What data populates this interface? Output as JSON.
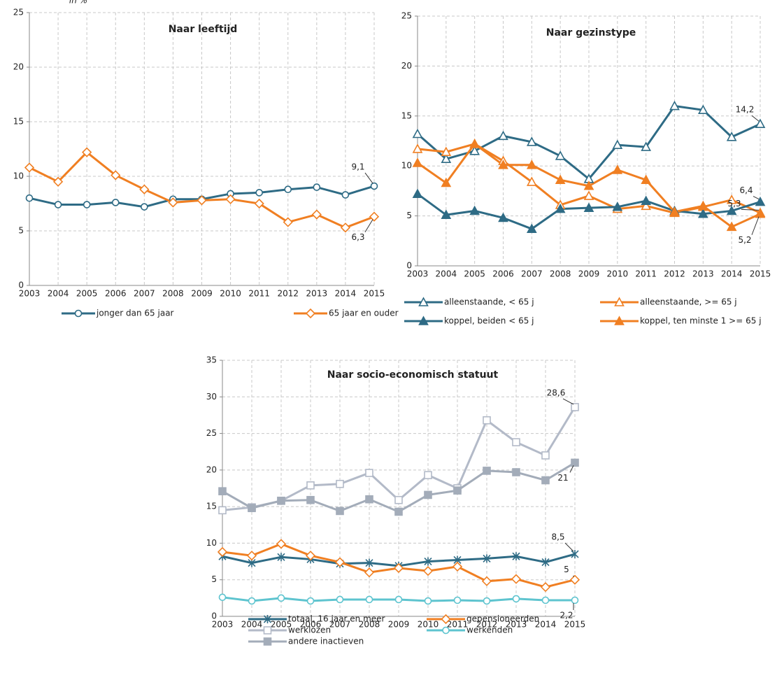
{
  "chart_data": [
    {
      "type": "line",
      "title": "Naar leeftijd",
      "y_label": "in %",
      "categories": [
        "2003",
        "2004",
        "2005",
        "2006",
        "2007",
        "2008",
        "2009",
        "2010",
        "2011",
        "2012",
        "2013",
        "2014",
        "2015"
      ],
      "ylim": [
        0,
        25
      ],
      "yticks": [
        0,
        5,
        10,
        15,
        20,
        25
      ],
      "grid": true,
      "series": [
        {
          "name": "jonger dan 65 jaar",
          "color": "#2e6b85",
          "marker": "circle-open",
          "values": [
            8.0,
            7.4,
            7.4,
            7.6,
            7.2,
            7.9,
            7.9,
            8.4,
            8.5,
            8.8,
            9.0,
            8.3,
            9.1
          ],
          "value_labels": [
            null,
            null,
            null,
            null,
            null,
            null,
            null,
            null,
            null,
            null,
            null,
            null,
            "9,1"
          ]
        },
        {
          "name": "65 jaar en ouder",
          "color": "#f07f22",
          "marker": "diamond-open",
          "values": [
            10.8,
            9.5,
            12.2,
            10.1,
            8.8,
            7.6,
            7.8,
            7.9,
            7.5,
            5.8,
            6.5,
            5.3,
            6.3
          ],
          "value_labels": [
            null,
            null,
            null,
            null,
            null,
            null,
            null,
            null,
            null,
            null,
            null,
            null,
            "6,3"
          ]
        }
      ]
    },
    {
      "type": "line",
      "title": "Naar gezinstype",
      "categories": [
        "2003",
        "2004",
        "2005",
        "2006",
        "2007",
        "2008",
        "2009",
        "2010",
        "2011",
        "2012",
        "2013",
        "2014",
        "2015"
      ],
      "ylim": [
        0,
        25
      ],
      "yticks": [
        0,
        5,
        10,
        15,
        20,
        25
      ],
      "grid": true,
      "series": [
        {
          "name": "alleenstaande, < 65 j",
          "color": "#2e6b85",
          "marker": "triangle-open",
          "values": [
            13.2,
            10.7,
            11.5,
            13.0,
            12.4,
            11.0,
            8.7,
            12.1,
            11.9,
            16.0,
            15.6,
            12.9,
            14.2
          ],
          "value_labels": [
            null,
            null,
            null,
            null,
            null,
            null,
            null,
            null,
            null,
            null,
            null,
            null,
            "14,2"
          ]
        },
        {
          "name": "alleenstaande, >= 65 j",
          "color": "#f07f22",
          "marker": "triangle-open",
          "values": [
            11.7,
            11.4,
            12.2,
            10.5,
            8.4,
            6.1,
            7.0,
            5.7,
            6.0,
            5.3,
            5.9,
            6.6,
            5.3
          ],
          "value_labels": [
            null,
            null,
            null,
            null,
            null,
            null,
            null,
            null,
            null,
            null,
            null,
            null,
            "5,3"
          ]
        },
        {
          "name": "koppel, beiden < 65 j",
          "color": "#2e6b85",
          "marker": "triangle",
          "values": [
            7.2,
            5.1,
            5.5,
            4.8,
            3.7,
            5.7,
            5.8,
            5.9,
            6.5,
            5.5,
            5.2,
            5.5,
            6.4
          ],
          "value_labels": [
            null,
            null,
            null,
            null,
            null,
            null,
            null,
            null,
            null,
            null,
            null,
            null,
            "6,4"
          ]
        },
        {
          "name": "koppel, ten minste 1 >= 65 j",
          "color": "#f07f22",
          "marker": "triangle",
          "values": [
            10.3,
            8.3,
            12.2,
            10.1,
            10.1,
            8.6,
            8.0,
            9.6,
            8.6,
            5.4,
            6.0,
            3.9,
            5.2
          ],
          "value_labels": [
            null,
            null,
            null,
            null,
            null,
            null,
            null,
            null,
            null,
            null,
            null,
            null,
            "5,2"
          ]
        }
      ]
    },
    {
      "type": "line",
      "title": "Naar socio-economisch statuut",
      "categories": [
        "2003",
        "2004",
        "2005",
        "2006",
        "2007",
        "2008",
        "2009",
        "2010",
        "2011",
        "2012",
        "2013",
        "2014",
        "2015"
      ],
      "ylim": [
        0,
        35
      ],
      "yticks": [
        0,
        5,
        10,
        15,
        20,
        25,
        30,
        35
      ],
      "grid": true,
      "series": [
        {
          "name": "totaal, 16 jaar en meer",
          "color": "#2e6b85",
          "marker": "star",
          "values": [
            8.2,
            7.3,
            8.1,
            7.8,
            7.2,
            7.3,
            6.9,
            7.5,
            7.7,
            7.9,
            8.2,
            7.4,
            8.5
          ],
          "value_labels": [
            null,
            null,
            null,
            null,
            null,
            null,
            null,
            null,
            null,
            null,
            null,
            null,
            "8,5"
          ]
        },
        {
          "name": "gepensioneerden",
          "color": "#f07f22",
          "marker": "diamond-open",
          "values": [
            8.8,
            8.3,
            9.9,
            8.3,
            7.4,
            6.0,
            6.6,
            6.2,
            6.8,
            4.8,
            5.1,
            4.0,
            5.0
          ],
          "value_labels": [
            null,
            null,
            null,
            null,
            null,
            null,
            null,
            null,
            null,
            null,
            null,
            null,
            "5"
          ]
        },
        {
          "name": "werklozen",
          "color": "#b3bac8",
          "marker": "square-open",
          "values": [
            14.5,
            14.9,
            15.8,
            17.9,
            18.1,
            19.6,
            15.9,
            19.3,
            17.5,
            26.8,
            23.8,
            22.0,
            28.6
          ],
          "value_labels": [
            null,
            null,
            null,
            null,
            null,
            null,
            null,
            null,
            null,
            null,
            null,
            null,
            "28,6"
          ]
        },
        {
          "name": "werkenden",
          "color": "#5ec4cf",
          "marker": "circle-open",
          "values": [
            2.6,
            2.1,
            2.5,
            2.1,
            2.3,
            2.3,
            2.3,
            2.1,
            2.2,
            2.1,
            2.4,
            2.2,
            2.2
          ],
          "value_labels": [
            null,
            null,
            null,
            null,
            null,
            null,
            null,
            null,
            null,
            null,
            null,
            null,
            "2,2"
          ]
        },
        {
          "name": "andere inactieven",
          "color": "#a3acb9",
          "marker": "square",
          "values": [
            17.1,
            14.8,
            15.8,
            15.9,
            14.4,
            16.0,
            14.3,
            16.6,
            17.2,
            19.9,
            19.7,
            18.6,
            21.0
          ],
          "value_labels": [
            null,
            null,
            null,
            null,
            null,
            null,
            null,
            null,
            null,
            null,
            null,
            null,
            "21"
          ]
        }
      ]
    }
  ]
}
